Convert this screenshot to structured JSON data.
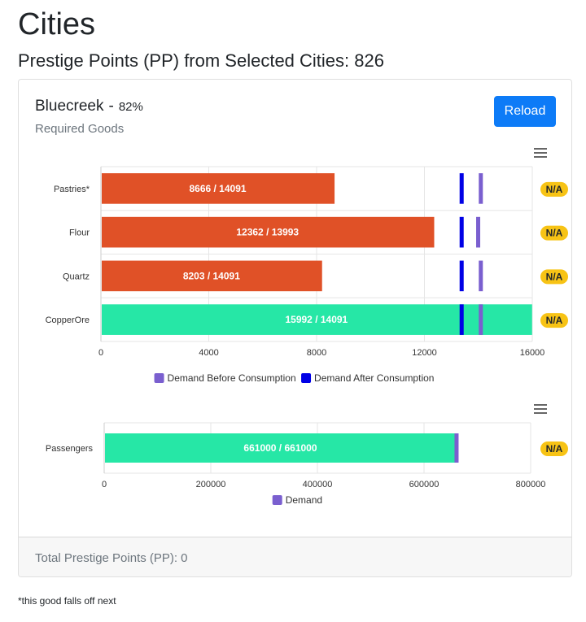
{
  "page": {
    "title": "Cities",
    "subtitle": "Prestige Points (PP) from Selected Cities: 826"
  },
  "city": {
    "name": "Bluecreek",
    "separator": "-",
    "percent": "82%",
    "section_label": "Required Goods",
    "reload_label": "Reload"
  },
  "footer": {
    "label": "Total Prestige Points (PP):",
    "value": "0"
  },
  "footnote": "*this good falls off next",
  "colors": {
    "short": "#e05127",
    "met": "#26e7a6",
    "demand_before": "#7a5fcf",
    "demand_after": "#0000e6",
    "badge": "#f7c315",
    "primary": "#0d7bf7"
  },
  "chart_data": [
    {
      "type": "bar",
      "orientation": "horizontal",
      "categories": [
        "Pastries*",
        "Flour",
        "Quartz",
        "CopperOre"
      ],
      "values": [
        8666,
        12362,
        8203,
        15992
      ],
      "bar_labels": [
        "8666 / 14091",
        "12362 / 13993",
        "8203 / 14091",
        "15992 / 14091"
      ],
      "demand_before": [
        14091,
        13993,
        14091,
        14091
      ],
      "demand_after": [
        13380,
        13380,
        13380,
        13380
      ],
      "status": [
        "short",
        "short",
        "short",
        "met"
      ],
      "badges": [
        "N/A",
        "N/A",
        "N/A",
        "N/A"
      ],
      "xlim": [
        0,
        16000
      ],
      "xticks": [
        "0",
        "4000",
        "8000",
        "12000",
        "16000"
      ],
      "legend": [
        "Demand Before Consumption",
        "Demand After Consumption"
      ],
      "legend_position": "bottom",
      "grid": true
    },
    {
      "type": "bar",
      "orientation": "horizontal",
      "categories": [
        "Passengers"
      ],
      "values": [
        661000
      ],
      "bar_labels": [
        "661000 / 661000"
      ],
      "demand": [
        661000
      ],
      "status": [
        "met"
      ],
      "badges": [
        "N/A"
      ],
      "xlim": [
        0,
        800000
      ],
      "xticks": [
        "0",
        "200000",
        "400000",
        "600000",
        "800000"
      ],
      "legend": [
        "Demand"
      ],
      "legend_position": "bottom",
      "grid": true
    }
  ]
}
